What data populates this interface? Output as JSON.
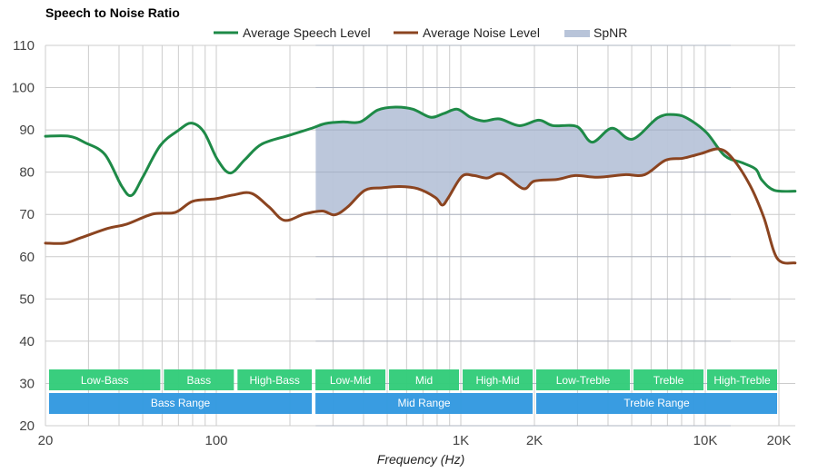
{
  "chart_data": {
    "type": "line",
    "title": "Speech to Noise Ratio",
    "xlabel": "Frequency (Hz)",
    "ylabel": "",
    "x_scale": "log",
    "xlim": [
      20,
      23300
    ],
    "ylim": [
      20,
      110
    ],
    "grid": true,
    "legend_position": "top",
    "y_ticks": [
      20,
      30,
      40,
      50,
      60,
      70,
      80,
      90,
      100,
      110
    ],
    "x_ticks": [
      {
        "value": 20,
        "label": "20"
      },
      {
        "value": 100,
        "label": "100"
      },
      {
        "value": 1000,
        "label": "1K"
      },
      {
        "value": 2000,
        "label": "2K"
      },
      {
        "value": 10000,
        "label": "10K"
      },
      {
        "value": 20000,
        "label": "20K"
      }
    ],
    "x_minor_gridlines": [
      30,
      40,
      50,
      60,
      70,
      80,
      90,
      200,
      300,
      400,
      500,
      600,
      700,
      800,
      900,
      3000,
      4000,
      5000,
      6000,
      7000,
      8000,
      9000
    ],
    "legend": [
      {
        "name": "Average Speech Level",
        "color": "#1e8a47",
        "kind": "line"
      },
      {
        "name": "Average Noise Level",
        "color": "#8b4420",
        "kind": "line"
      },
      {
        "name": "SpNR",
        "color": "#b8c4d9",
        "kind": "area"
      }
    ],
    "series": [
      {
        "name": "Average Speech Level",
        "color": "#1e8a47",
        "points": [
          [
            20,
            88.5
          ],
          [
            25,
            88.5
          ],
          [
            29,
            87.0
          ],
          [
            35,
            84.2
          ],
          [
            41,
            76.7
          ],
          [
            45,
            74.5
          ],
          [
            50,
            78.8
          ],
          [
            59,
            86.3
          ],
          [
            70,
            89.9
          ],
          [
            79,
            91.6
          ],
          [
            89,
            89.5
          ],
          [
            101,
            83.0
          ],
          [
            114,
            79.8
          ],
          [
            131,
            83.0
          ],
          [
            153,
            86.6
          ],
          [
            198,
            88.7
          ],
          [
            246,
            90.4
          ],
          [
            279,
            91.5
          ],
          [
            329,
            91.9
          ],
          [
            388,
            91.9
          ],
          [
            457,
            94.7
          ],
          [
            540,
            95.4
          ],
          [
            637,
            94.9
          ],
          [
            752,
            93.0
          ],
          [
            853,
            93.9
          ],
          [
            967,
            94.9
          ],
          [
            1095,
            93.0
          ],
          [
            1240,
            92.1
          ],
          [
            1440,
            92.6
          ],
          [
            1736,
            91.0
          ],
          [
            2086,
            92.3
          ],
          [
            2383,
            91.0
          ],
          [
            2982,
            90.8
          ],
          [
            3444,
            87.1
          ],
          [
            4150,
            90.4
          ],
          [
            5030,
            87.8
          ],
          [
            6410,
            92.9
          ],
          [
            7570,
            93.6
          ],
          [
            8580,
            92.5
          ],
          [
            10140,
            89.3
          ],
          [
            12000,
            83.9
          ],
          [
            14190,
            82.2
          ],
          [
            16080,
            80.7
          ],
          [
            17050,
            78.1
          ],
          [
            19150,
            75.7
          ],
          [
            23300,
            75.5
          ]
        ]
      },
      {
        "name": "Average Noise Level",
        "color": "#8b4420",
        "points": [
          [
            20,
            63.2
          ],
          [
            24,
            63.2
          ],
          [
            28,
            64.5
          ],
          [
            36,
            66.7
          ],
          [
            43,
            67.7
          ],
          [
            55,
            70.1
          ],
          [
            68,
            70.5
          ],
          [
            80,
            73.1
          ],
          [
            99,
            73.7
          ],
          [
            117,
            74.6
          ],
          [
            139,
            75.0
          ],
          [
            164,
            71.8
          ],
          [
            190,
            68.6
          ],
          [
            229,
            70.1
          ],
          [
            271,
            70.8
          ],
          [
            305,
            69.9
          ],
          [
            345,
            71.8
          ],
          [
            405,
            75.7
          ],
          [
            478,
            76.3
          ],
          [
            565,
            76.6
          ],
          [
            666,
            76.1
          ],
          [
            787,
            74.0
          ],
          [
            840,
            72.2
          ],
          [
            890,
            74.0
          ],
          [
            1010,
            79.0
          ],
          [
            1130,
            79.2
          ],
          [
            1280,
            78.6
          ],
          [
            1470,
            79.6
          ],
          [
            1800,
            76.1
          ],
          [
            2000,
            77.9
          ],
          [
            2480,
            78.3
          ],
          [
            2940,
            79.2
          ],
          [
            3630,
            78.8
          ],
          [
            4680,
            79.4
          ],
          [
            5650,
            79.4
          ],
          [
            6860,
            82.8
          ],
          [
            8110,
            83.3
          ],
          [
            9600,
            84.4
          ],
          [
            11370,
            85.5
          ],
          [
            12900,
            83.3
          ],
          [
            15260,
            76.8
          ],
          [
            17350,
            69.3
          ],
          [
            19680,
            59.6
          ],
          [
            23300,
            58.5
          ]
        ]
      }
    ],
    "spnr_area": {
      "name": "SpNR",
      "from_hz": 255,
      "to_hz": 12700,
      "color": "#b8c4d9"
    },
    "bands": [
      {
        "label": "Low-Bass",
        "from_hz": 20,
        "to_hz": 60,
        "color": "#33cc7a"
      },
      {
        "label": "Bass",
        "from_hz": 60,
        "to_hz": 120,
        "color": "#33cc7a"
      },
      {
        "label": "High-Bass",
        "from_hz": 120,
        "to_hz": 250,
        "color": "#33cc7a"
      },
      {
        "label": "Low-Mid",
        "from_hz": 250,
        "to_hz": 500,
        "color": "#33cc7a"
      },
      {
        "label": "Mid",
        "from_hz": 500,
        "to_hz": 1000,
        "color": "#33cc7a"
      },
      {
        "label": "High-Mid",
        "from_hz": 1000,
        "to_hz": 2000,
        "color": "#33cc7a"
      },
      {
        "label": "Low-Treble",
        "from_hz": 2000,
        "to_hz": 5000,
        "color": "#33cc7a"
      },
      {
        "label": "Treble",
        "from_hz": 5000,
        "to_hz": 10000,
        "color": "#33cc7a"
      },
      {
        "label": "High-Treble",
        "from_hz": 10000,
        "to_hz": 20000,
        "color": "#33cc7a"
      }
    ],
    "ranges": [
      {
        "label": "Bass Range",
        "from_hz": 20,
        "to_hz": 250,
        "color": "#3399e0"
      },
      {
        "label": "Mid Range",
        "from_hz": 250,
        "to_hz": 2000,
        "color": "#3399e0"
      },
      {
        "label": "Treble Range",
        "from_hz": 2000,
        "to_hz": 20000,
        "color": "#3399e0"
      }
    ]
  }
}
